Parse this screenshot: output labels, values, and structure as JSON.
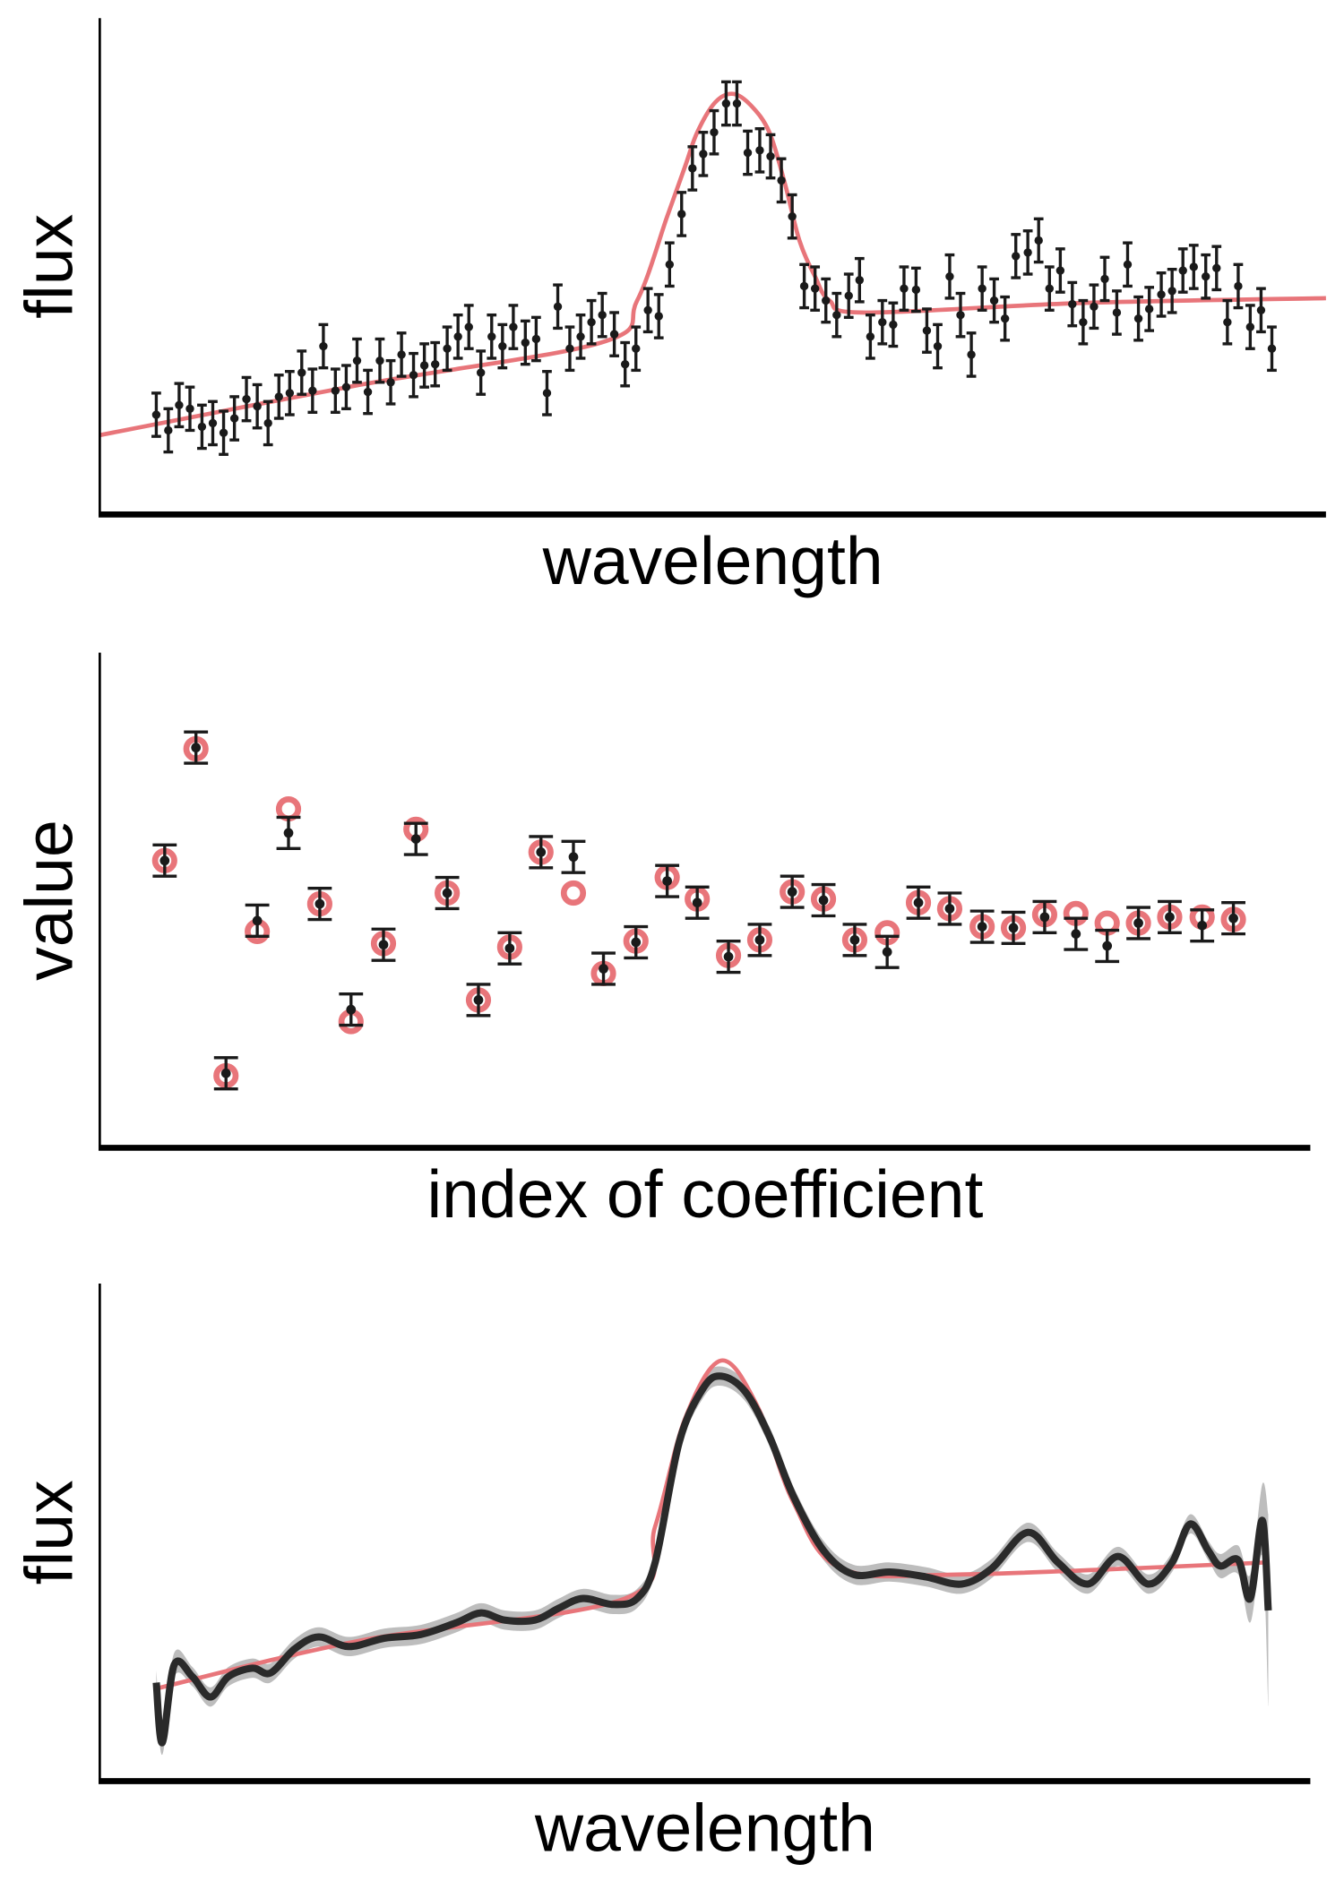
{
  "chart_data": [
    {
      "type": "errorbar",
      "xlabel": "wavelength",
      "ylabel": "flux",
      "xlim": [
        0,
        1020
      ],
      "ylim": [
        0,
        413
      ],
      "color": "#1a1a1a",
      "yerr": 18,
      "x": [
        47,
        57,
        66,
        75,
        85,
        94,
        103,
        112,
        122,
        131,
        140,
        149,
        158,
        168,
        177,
        186,
        196,
        205,
        214,
        223,
        233,
        242,
        251,
        261,
        270,
        279,
        289,
        298,
        307,
        317,
        326,
        335,
        344,
        354,
        363,
        372,
        381,
        391,
        400,
        409,
        418,
        428,
        437,
        446,
        456,
        465,
        474,
        484,
        493,
        502,
        511,
        521,
        530,
        539,
        549,
        558,
        567,
        576,
        586,
        595,
        604,
        613,
        623,
        632,
        641,
        651,
        660,
        669,
        679,
        688,
        697,
        707,
        716,
        725,
        734,
        744,
        753,
        762,
        772,
        781,
        790,
        799,
        809,
        818,
        827,
        836,
        846,
        855,
        864,
        873,
        883,
        892,
        901,
        910,
        920,
        929,
        938,
        947,
        957,
        966,
        975
      ],
      "values": [
        83,
        70,
        91,
        88,
        73,
        76,
        68,
        80,
        96,
        90,
        76,
        98,
        101,
        118,
        103,
        140,
        103,
        106,
        128,
        102,
        128,
        110,
        133,
        116,
        124,
        125,
        138,
        148,
        156,
        118,
        148,
        140,
        156,
        143,
        146,
        101,
        173,
        138,
        148,
        160,
        166,
        150,
        125,
        138,
        170,
        165,
        208,
        250,
        288,
        300,
        318,
        342,
        342,
        301,
        303,
        298,
        278,
        248,
        190,
        188,
        178,
        166,
        182,
        195,
        148,
        160,
        158,
        188,
        187,
        153,
        140,
        198,
        166,
        133,
        188,
        178,
        163,
        215,
        218,
        228,
        188,
        203,
        175,
        160,
        173,
        196,
        168,
        208,
        163,
        171,
        183,
        186,
        203,
        206,
        198,
        205,
        160,
        190,
        156,
        170,
        138
      ],
      "model": {
        "color": "#e8757a",
        "x": [
          0,
          217,
          417,
          447,
          472,
          487,
          497,
          512,
          527,
          542,
          557,
          570,
          582,
          595,
          607,
          637,
          817,
          1020
        ],
        "values": [
          66,
          108,
          143,
          178,
          248,
          290,
          318,
          343,
          350,
          340,
          318,
          275,
          228,
          198,
          178,
          168,
          176,
          180
        ]
      }
    },
    {
      "type": "coefficients",
      "xlabel": "index of coefficient",
      "ylabel": "value",
      "xlim": [
        0,
        1007
      ],
      "ylim": [
        0,
        412
      ],
      "color": "#1a1a1a",
      "yerr": 13,
      "x": [
        54,
        80,
        105,
        131,
        157,
        183,
        209,
        236,
        263,
        289,
        315,
        341,
        367,
        394,
        419,
        446,
        472,
        497,
        523,
        549,
        576,
        602,
        628,
        655,
        681,
        707,
        734,
        760,
        786,
        812,
        838,
        864,
        890,
        917,
        943
      ],
      "values": [
        239,
        333,
        62,
        189,
        262,
        203,
        115,
        169,
        257,
        212,
        123,
        166,
        246,
        242,
        149,
        171,
        222,
        204,
        159,
        173,
        213,
        206,
        173,
        163,
        204,
        199,
        184,
        183,
        192,
        178,
        168,
        187,
        192,
        185,
        191
      ],
      "truth": {
        "color": "#e8757a",
        "values": [
          239,
          332,
          60,
          180,
          282,
          203,
          105,
          170,
          265,
          212,
          123,
          167,
          246,
          212,
          145,
          172,
          225,
          207,
          160,
          173,
          213,
          207,
          173,
          179,
          204,
          199,
          184,
          183,
          194,
          195,
          187,
          187,
          192,
          192,
          190
        ]
      }
    },
    {
      "type": "band-line",
      "xlabel": "wavelength",
      "ylabel": "flux",
      "xlim": [
        0,
        1007
      ],
      "ylim": [
        0,
        414
      ],
      "line": {
        "color": "#2a2a2a",
        "band_color": "#bdbdbd",
        "x": [
          47,
          52,
          62,
          77,
          92,
          107,
          127,
          142,
          162,
          182,
          207,
          237,
          267,
          297,
          317,
          337,
          362,
          382,
          402,
          427,
          447,
          462,
          482,
          502,
          517,
          537,
          557,
          577,
          602,
          627,
          657,
          687,
          717,
          742,
          772,
          797,
          822,
          847,
          872,
          892,
          907,
          922,
          932,
          947,
          957,
          967,
          972
        ],
        "values": [
          82,
          32,
          97,
          87,
          70,
          87,
          94,
          90,
          110,
          120,
          112,
          119,
          122,
          132,
          140,
          134,
          134,
          144,
          152,
          147,
          152,
          182,
          282,
          327,
          337,
          324,
          287,
          237,
          192,
          172,
          174,
          170,
          164,
          177,
          207,
          182,
          164,
          187,
          164,
          182,
          214,
          192,
          179,
          184,
          152,
          217,
          142
        ],
        "band": [
          10,
          10,
          10,
          8,
          8,
          8,
          8,
          8,
          8,
          8,
          8,
          8,
          8,
          8,
          8,
          8,
          8,
          8,
          8,
          8,
          8,
          8,
          8,
          8,
          8,
          8,
          8,
          8,
          8,
          8,
          8,
          8,
          8,
          8,
          8,
          8,
          8,
          8,
          8,
          8,
          8,
          8,
          10,
          12,
          20,
          30,
          80
        ]
      },
      "model": {
        "color": "#e8757a",
        "x": [
          47,
          217,
          437,
          462,
          487,
          517,
          547,
          577,
          617,
          717,
          972
        ],
        "values": [
          77,
          117,
          152,
          212,
          302,
          350,
          312,
          232,
          177,
          172,
          182
        ]
      }
    }
  ]
}
